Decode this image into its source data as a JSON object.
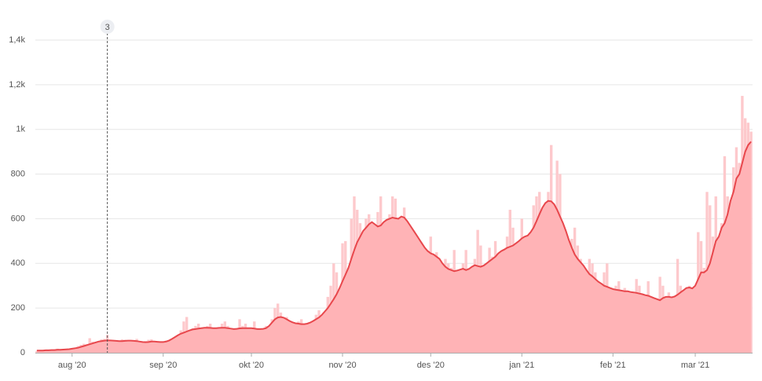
{
  "chart_data": {
    "type": "bar-line",
    "categories": [
      null,
      null,
      null,
      null,
      null,
      null,
      null,
      null,
      null,
      null,
      null,
      null,
      "aug '20",
      null,
      null,
      null,
      null,
      null,
      null,
      null,
      null,
      null,
      null,
      null,
      null,
      null,
      null,
      null,
      null,
      null,
      null,
      null,
      null,
      null,
      null,
      null,
      null,
      null,
      null,
      null,
      null,
      null,
      null,
      "sep '20",
      null,
      null,
      null,
      null,
      null,
      null,
      null,
      null,
      null,
      null,
      null,
      null,
      null,
      null,
      null,
      null,
      null,
      null,
      null,
      null,
      null,
      null,
      null,
      null,
      null,
      null,
      null,
      null,
      null,
      "okt '20",
      null,
      null,
      null,
      null,
      null,
      null,
      null,
      null,
      null,
      null,
      null,
      null,
      null,
      null,
      null,
      null,
      null,
      null,
      null,
      null,
      null,
      null,
      null,
      null,
      null,
      null,
      null,
      null,
      null,
      null,
      "nov '20",
      null,
      null,
      null,
      null,
      null,
      null,
      null,
      null,
      null,
      null,
      null,
      null,
      null,
      null,
      null,
      null,
      null,
      null,
      null,
      null,
      null,
      null,
      null,
      null,
      null,
      null,
      null,
      null,
      null,
      "des '20",
      null,
      null,
      null,
      null,
      null,
      null,
      null,
      null,
      null,
      null,
      null,
      null,
      null,
      null,
      null,
      null,
      null,
      null,
      null,
      null,
      null,
      null,
      null,
      null,
      null,
      null,
      null,
      null,
      null,
      null,
      "jan '21",
      null,
      null,
      null,
      null,
      null,
      null,
      null,
      null,
      null,
      null,
      null,
      null,
      null,
      null,
      null,
      null,
      null,
      null,
      null,
      null,
      null,
      null,
      null,
      null,
      null,
      null,
      null,
      null,
      null,
      null,
      "feb '21",
      null,
      null,
      null,
      null,
      null,
      null,
      null,
      null,
      null,
      null,
      null,
      null,
      null,
      null,
      null,
      null,
      null,
      null,
      null,
      null,
      null,
      null,
      null,
      null,
      null,
      null,
      null,
      "mar '21",
      null,
      null,
      null,
      null,
      null,
      null,
      null,
      null,
      null,
      null,
      null,
      null,
      null,
      null,
      null,
      null,
      null,
      null,
      null
    ],
    "series": [
      {
        "kind": "bar",
        "color": "#fdc9cc",
        "values": [
          8,
          12,
          10,
          14,
          13,
          9,
          8,
          18,
          15,
          16,
          14,
          10,
          12,
          18,
          30,
          35,
          40,
          38,
          65,
          50,
          45,
          35,
          60,
          62,
          80,
          55,
          48,
          40,
          55,
          60,
          58,
          50,
          55,
          45,
          62,
          48,
          40,
          52,
          58,
          60,
          45,
          42,
          38,
          50,
          55,
          50,
          48,
          60,
          80,
          100,
          140,
          160,
          90,
          110,
          120,
          130,
          100,
          95,
          120,
          130,
          110,
          95,
          80,
          130,
          140,
          120,
          100,
          90,
          110,
          150,
          120,
          130,
          100,
          80,
          140,
          110,
          95,
          85,
          120,
          100,
          150,
          200,
          220,
          180,
          140,
          160,
          130,
          120,
          110,
          140,
          150,
          125,
          100,
          110,
          130,
          170,
          190,
          150,
          180,
          250,
          300,
          400,
          360,
          280,
          490,
          500,
          380,
          600,
          700,
          640,
          580,
          520,
          600,
          620,
          540,
          500,
          630,
          700,
          580,
          520,
          620,
          700,
          690,
          560,
          520,
          650,
          580,
          520,
          400,
          520,
          480,
          450,
          300,
          430,
          520,
          440,
          450,
          360,
          300,
          420,
          400,
          380,
          460,
          340,
          300,
          400,
          460,
          380,
          320,
          420,
          550,
          480,
          300,
          380,
          470,
          430,
          500,
          400,
          360,
          460,
          520,
          640,
          560,
          420,
          480,
          600,
          510,
          520,
          540,
          660,
          700,
          720,
          640,
          560,
          720,
          930,
          650,
          860,
          800,
          500,
          450,
          380,
          510,
          560,
          480,
          420,
          360,
          300,
          420,
          400,
          360,
          300,
          250,
          360,
          400,
          280,
          220,
          300,
          320,
          240,
          290,
          270,
          250,
          230,
          330,
          300,
          200,
          250,
          320,
          240,
          220,
          180,
          340,
          300,
          240,
          270,
          230,
          180,
          420,
          300,
          200,
          240,
          300,
          260,
          220,
          540,
          500,
          380,
          720,
          660,
          520,
          700,
          400,
          580,
          880,
          700,
          640,
          830,
          920,
          850,
          1150,
          1050,
          1030,
          990
        ]
      },
      {
        "kind": "line",
        "color": "#e8474c",
        "fill": "#ffb3b6",
        "values": [
          10,
          10,
          10,
          11,
          11,
          12,
          12,
          13,
          13,
          14,
          15,
          16,
          18,
          20,
          22,
          26,
          30,
          34,
          38,
          42,
          46,
          50,
          52,
          54,
          55,
          55,
          54,
          53,
          52,
          52,
          53,
          54,
          54,
          53,
          52,
          50,
          48,
          47,
          48,
          50,
          50,
          49,
          48,
          48,
          50,
          55,
          62,
          70,
          78,
          85,
          90,
          95,
          100,
          104,
          106,
          108,
          110,
          112,
          112,
          111,
          110,
          110,
          111,
          112,
          112,
          110,
          108,
          106,
          107,
          109,
          110,
          110,
          110,
          110,
          108,
          106,
          106,
          107,
          110,
          120,
          135,
          150,
          158,
          160,
          157,
          150,
          142,
          136,
          132,
          130,
          128,
          128,
          130,
          135,
          142,
          150,
          158,
          170,
          185,
          200,
          220,
          240,
          262,
          290,
          320,
          350,
          380,
          420,
          460,
          495,
          520,
          545,
          560,
          575,
          585,
          575,
          565,
          570,
          585,
          595,
          600,
          605,
          602,
          600,
          610,
          605,
          590,
          570,
          550,
          530,
          510,
          490,
          470,
          455,
          445,
          440,
          430,
          420,
          400,
          385,
          375,
          370,
          365,
          368,
          372,
          376,
          370,
          375,
          385,
          392,
          388,
          385,
          390,
          400,
          410,
          420,
          430,
          445,
          455,
          462,
          470,
          475,
          480,
          490,
          500,
          512,
          520,
          525,
          540,
          560,
          590,
          620,
          650,
          670,
          680,
          678,
          665,
          640,
          610,
          580,
          545,
          505,
          470,
          440,
          420,
          405,
          390,
          370,
          352,
          342,
          330,
          318,
          310,
          300,
          295,
          290,
          285,
          282,
          280,
          278,
          275,
          275,
          272,
          270,
          268,
          265,
          262,
          258,
          255,
          250,
          245,
          240,
          235,
          245,
          250,
          250,
          248,
          252,
          260,
          270,
          280,
          290,
          292,
          288,
          300,
          330,
          360,
          360,
          370,
          400,
          450,
          500,
          520,
          560,
          580,
          620,
          680,
          720,
          780,
          800,
          850,
          900,
          930,
          945
        ]
      }
    ],
    "ylim": [
      0,
      1400
    ],
    "yticks": [
      0,
      200,
      400,
      600,
      800,
      {
        "value": 1000,
        "label": "1k"
      },
      {
        "value": 1200,
        "label": "1,2k"
      },
      {
        "value": 1400,
        "label": "1,4k"
      }
    ],
    "grid": true,
    "annotations": [
      {
        "text": "3",
        "at": 24
      }
    ]
  }
}
